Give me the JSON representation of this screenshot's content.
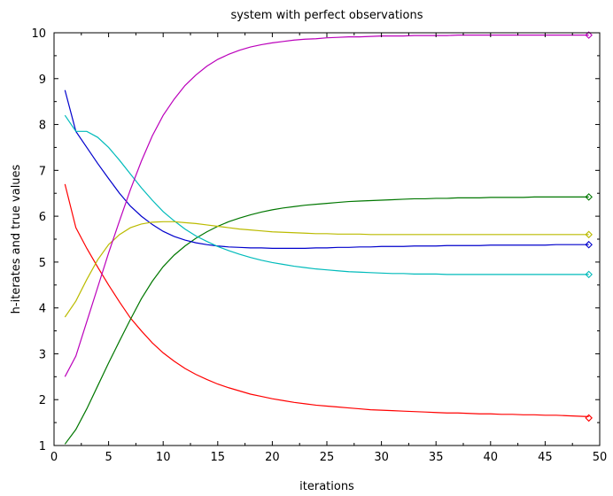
{
  "chart_data": {
    "type": "line",
    "title": "system with perfect observations",
    "xlabel": "iterations",
    "ylabel": "h-iterates and true values",
    "xlim": [
      0,
      50
    ],
    "ylim": [
      1,
      10
    ],
    "x_ticks": [
      0,
      5,
      10,
      15,
      20,
      25,
      30,
      35,
      40,
      45,
      50
    ],
    "y_ticks": [
      1,
      2,
      3,
      4,
      5,
      6,
      7,
      8,
      9,
      10
    ],
    "grid": false,
    "legend": "none",
    "x": [
      1,
      2,
      3,
      4,
      5,
      6,
      7,
      8,
      9,
      10,
      11,
      12,
      13,
      14,
      15,
      16,
      17,
      18,
      19,
      20,
      21,
      22,
      23,
      24,
      25,
      26,
      27,
      28,
      29,
      30,
      31,
      32,
      33,
      34,
      35,
      36,
      37,
      38,
      39,
      40,
      41,
      42,
      43,
      44,
      45,
      46,
      47,
      48,
      49
    ],
    "series": [
      {
        "color": "#ff0000",
        "values": [
          6.7,
          5.75,
          5.3,
          4.89,
          4.5,
          4.13,
          3.78,
          3.5,
          3.24,
          3.02,
          2.84,
          2.68,
          2.55,
          2.44,
          2.34,
          2.26,
          2.19,
          2.12,
          2.07,
          2.02,
          1.98,
          1.94,
          1.91,
          1.88,
          1.86,
          1.84,
          1.82,
          1.8,
          1.78,
          1.77,
          1.76,
          1.75,
          1.74,
          1.73,
          1.72,
          1.71,
          1.71,
          1.7,
          1.69,
          1.69,
          1.68,
          1.68,
          1.67,
          1.67,
          1.66,
          1.66,
          1.65,
          1.64,
          1.63
        ],
        "true_value": 1.6
      },
      {
        "color": "#007700",
        "values": [
          1.03,
          1.35,
          1.8,
          2.3,
          2.8,
          3.28,
          3.75,
          4.2,
          4.58,
          4.9,
          5.15,
          5.35,
          5.52,
          5.66,
          5.78,
          5.88,
          5.96,
          6.03,
          6.09,
          6.14,
          6.18,
          6.21,
          6.24,
          6.26,
          6.28,
          6.3,
          6.32,
          6.33,
          6.34,
          6.35,
          6.36,
          6.37,
          6.38,
          6.38,
          6.39,
          6.39,
          6.4,
          6.4,
          6.4,
          6.41,
          6.41,
          6.41,
          6.41,
          6.42,
          6.42,
          6.42,
          6.42,
          6.42,
          6.42
        ],
        "true_value": 6.42
      },
      {
        "color": "#0000cc",
        "values": [
          8.75,
          7.85,
          7.5,
          7.15,
          6.82,
          6.5,
          6.22,
          6.0,
          5.82,
          5.67,
          5.56,
          5.48,
          5.42,
          5.38,
          5.35,
          5.33,
          5.32,
          5.31,
          5.31,
          5.3,
          5.3,
          5.3,
          5.3,
          5.31,
          5.31,
          5.32,
          5.32,
          5.33,
          5.33,
          5.34,
          5.34,
          5.34,
          5.35,
          5.35,
          5.35,
          5.36,
          5.36,
          5.36,
          5.36,
          5.37,
          5.37,
          5.37,
          5.37,
          5.37,
          5.37,
          5.38,
          5.38,
          5.38,
          5.38
        ],
        "true_value": 5.38
      },
      {
        "color": "#00bbbb",
        "values": [
          8.2,
          7.85,
          7.85,
          7.72,
          7.5,
          7.22,
          6.92,
          6.62,
          6.35,
          6.1,
          5.9,
          5.72,
          5.57,
          5.45,
          5.34,
          5.25,
          5.17,
          5.1,
          5.04,
          4.99,
          4.95,
          4.91,
          4.88,
          4.85,
          4.83,
          4.81,
          4.79,
          4.78,
          4.77,
          4.76,
          4.75,
          4.75,
          4.74,
          4.74,
          4.74,
          4.73,
          4.73,
          4.73,
          4.73,
          4.73,
          4.73,
          4.73,
          4.73,
          4.73,
          4.73,
          4.73,
          4.73,
          4.73,
          4.73
        ],
        "true_value": 4.73
      },
      {
        "color": "#bbbb00",
        "values": [
          3.8,
          4.15,
          4.62,
          5.05,
          5.38,
          5.6,
          5.75,
          5.83,
          5.87,
          5.88,
          5.88,
          5.86,
          5.84,
          5.81,
          5.78,
          5.75,
          5.72,
          5.7,
          5.68,
          5.66,
          5.65,
          5.64,
          5.63,
          5.62,
          5.62,
          5.61,
          5.61,
          5.61,
          5.6,
          5.6,
          5.6,
          5.6,
          5.6,
          5.6,
          5.6,
          5.6,
          5.6,
          5.6,
          5.6,
          5.6,
          5.6,
          5.6,
          5.6,
          5.6,
          5.6,
          5.6,
          5.6,
          5.6,
          5.6
        ],
        "true_value": 5.6
      },
      {
        "color": "#bb00bb",
        "values": [
          2.5,
          2.95,
          3.7,
          4.45,
          5.2,
          5.9,
          6.58,
          7.2,
          7.75,
          8.2,
          8.55,
          8.85,
          9.08,
          9.27,
          9.42,
          9.53,
          9.62,
          9.69,
          9.74,
          9.78,
          9.81,
          9.84,
          9.86,
          9.87,
          9.89,
          9.9,
          9.91,
          9.91,
          9.92,
          9.93,
          9.93,
          9.93,
          9.94,
          9.94,
          9.94,
          9.94,
          9.95,
          9.95,
          9.95,
          9.95,
          9.95,
          9.95,
          9.95,
          9.95,
          9.95,
          9.95,
          9.95,
          9.95,
          9.95
        ],
        "true_value": 9.95
      }
    ]
  }
}
